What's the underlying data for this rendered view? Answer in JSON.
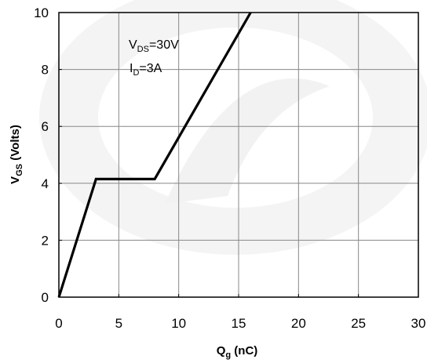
{
  "chart_data": {
    "type": "line",
    "title": "",
    "xlabel": {
      "main": "Q",
      "sub": "g",
      "rest": " (nC)"
    },
    "ylabel": {
      "main": "V",
      "sub": "GS",
      "rest": " (Volts)"
    },
    "xlim": [
      0,
      30
    ],
    "ylim": [
      0,
      10
    ],
    "xticks": [
      "0",
      "5",
      "10",
      "15",
      "20",
      "25",
      "30"
    ],
    "yticks": [
      "0",
      "2",
      "4",
      "6",
      "8",
      "10"
    ],
    "grid": true,
    "series": [
      {
        "x": [
          0,
          3.1,
          8,
          16
        ],
        "y": [
          0,
          4.15,
          4.15,
          10
        ]
      }
    ],
    "annotations": [
      {
        "main": "V",
        "sub": "DS",
        "rest": "=30V"
      },
      {
        "main": "I",
        "sub": "D",
        "rest": "=3A"
      }
    ]
  },
  "colors": {
    "line": "#000000",
    "grid": "#888888",
    "watermark": "#e6e6e6"
  }
}
